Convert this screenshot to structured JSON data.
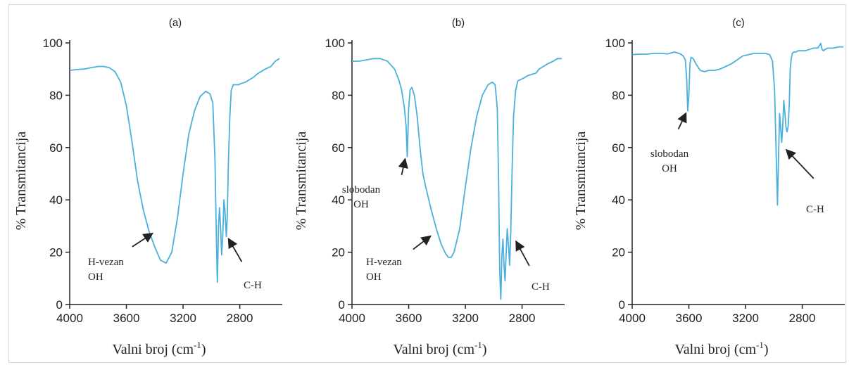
{
  "figure": {
    "line_color": "#4bb0dc",
    "panels": [
      {
        "label": "(a)",
        "xlabel": "Valni broj (cm",
        "xlabel_sup": "-1",
        "xlabel_end": ")",
        "ylabel": "% Transmitancija"
      },
      {
        "label": "(b)",
        "xlabel": "Valni broj (cm",
        "xlabel_sup": "-1",
        "xlabel_end": ")",
        "ylabel": "% Transmitancija"
      },
      {
        "label": "(c)",
        "xlabel": "Valni broj (cm",
        "xlabel_sup": "-1",
        "xlabel_end": ")",
        "ylabel": "% Transmitancija"
      }
    ]
  },
  "chart_data": [
    {
      "type": "line",
      "title": "(a)",
      "xlabel": "Valni broj (cm-1)",
      "ylabel": "% Transmitancija",
      "xlim": [
        4000,
        2500
      ],
      "ylim": [
        0,
        100
      ],
      "xticks": [
        4000,
        3600,
        3200,
        2800
      ],
      "yticks": [
        0,
        20,
        40,
        60,
        80,
        100
      ],
      "grid": false,
      "series": [
        {
          "x": [
            4000,
            3950,
            3900,
            3850,
            3800,
            3760,
            3720,
            3680,
            3640,
            3600,
            3560,
            3520,
            3480,
            3440,
            3400,
            3360,
            3320,
            3280,
            3240,
            3200,
            3160,
            3120,
            3080,
            3040,
            3010,
            2990,
            2975,
            2965,
            2958,
            2950,
            2943,
            2935,
            2928,
            2920,
            2912,
            2905,
            2895,
            2888,
            2880,
            2870,
            2860,
            2845,
            2830,
            2810,
            2790,
            2760,
            2730,
            2700,
            2680,
            2650,
            2620,
            2580,
            2550,
            2520
          ],
          "y": [
            89.5,
            89.8,
            90,
            90.5,
            91,
            91,
            90.5,
            89,
            85,
            76,
            62,
            47,
            36,
            28,
            22,
            17,
            15.8,
            20,
            33,
            50,
            65,
            74,
            79.5,
            81.5,
            80.5,
            77,
            55,
            25,
            8.5,
            30,
            37,
            29,
            19,
            26,
            40,
            36,
            26,
            34,
            55,
            72,
            82,
            84,
            84,
            84,
            84.5,
            85,
            86,
            87,
            88,
            89,
            90,
            91,
            93,
            94
          ]
        }
      ],
      "annotations": [
        {
          "text": "H-vezan OH",
          "x": 3400,
          "y": 28
        },
        {
          "text": "C-H",
          "x": 2895,
          "y": 26
        }
      ]
    },
    {
      "type": "line",
      "title": "(b)",
      "xlabel": "Valni broj (cm-1)",
      "ylabel": "% Transmitancija",
      "xlim": [
        4000,
        2500
      ],
      "ylim": [
        0,
        100
      ],
      "xticks": [
        4000,
        3600,
        3200,
        2800
      ],
      "yticks": [
        0,
        20,
        40,
        60,
        80,
        100
      ],
      "grid": false,
      "series": [
        {
          "x": [
            4000,
            3950,
            3900,
            3850,
            3800,
            3750,
            3700,
            3670,
            3650,
            3630,
            3618,
            3610,
            3600,
            3590,
            3578,
            3560,
            3540,
            3520,
            3500,
            3480,
            3440,
            3400,
            3370,
            3340,
            3320,
            3300,
            3280,
            3240,
            3200,
            3160,
            3120,
            3080,
            3040,
            3010,
            2990,
            2975,
            2965,
            2958,
            2950,
            2943,
            2935,
            2928,
            2920,
            2912,
            2905,
            2895,
            2888,
            2880,
            2870,
            2860,
            2845,
            2830,
            2810,
            2790,
            2760,
            2730,
            2700,
            2680,
            2650,
            2620,
            2580,
            2550,
            2520
          ],
          "y": [
            93,
            93,
            93.5,
            94,
            94,
            93,
            90,
            86,
            82,
            75,
            68,
            56.5,
            75,
            82,
            83,
            80,
            72,
            60,
            50,
            45,
            36,
            28,
            23,
            19.5,
            18,
            18,
            20,
            29,
            45,
            60,
            72,
            80,
            84,
            85,
            84,
            75,
            45,
            13,
            2,
            18,
            25,
            16,
            9,
            20,
            29,
            22,
            15,
            27,
            52,
            72,
            82,
            85.5,
            86,
            86.5,
            87.5,
            88,
            88.5,
            90,
            91,
            92,
            93,
            94,
            94
          ]
        }
      ],
      "annotations": [
        {
          "text": "slobodan OH",
          "x": 3610,
          "y": 56.5
        },
        {
          "text": "H-vezan OH",
          "x": 3430,
          "y": 27
        },
        {
          "text": "C-H",
          "x": 2858,
          "y": 25
        }
      ]
    },
    {
      "type": "line",
      "title": "(c)",
      "xlabel": "Valni broj (cm-1)",
      "ylabel": "% Transmitancija",
      "xlim": [
        4000,
        2500
      ],
      "ylim": [
        0,
        100
      ],
      "xticks": [
        4000,
        3600,
        3200,
        2800
      ],
      "yticks": [
        0,
        20,
        40,
        60,
        80,
        100
      ],
      "grid": false,
      "series": [
        {
          "x": [
            4000,
            3950,
            3900,
            3850,
            3800,
            3750,
            3700,
            3660,
            3640,
            3625,
            3615,
            3608,
            3600,
            3592,
            3585,
            3570,
            3550,
            3520,
            3490,
            3460,
            3420,
            3380,
            3340,
            3300,
            3260,
            3220,
            3180,
            3140,
            3100,
            3060,
            3030,
            3010,
            2995,
            2983,
            2975,
            2968,
            2960,
            2953,
            2945,
            2938,
            2930,
            2922,
            2915,
            2908,
            2900,
            2892,
            2885,
            2878,
            2870,
            2860,
            2845,
            2830,
            2810,
            2780,
            2750,
            2720,
            2690,
            2670,
            2660,
            2650,
            2640,
            2620,
            2580,
            2540,
            2510
          ],
          "y": [
            95.5,
            95.7,
            95.7,
            96,
            96,
            95.8,
            96.5,
            95.8,
            95,
            93.5,
            86,
            74,
            80,
            92,
            94.5,
            94,
            92,
            89.5,
            89,
            89.5,
            89.5,
            90,
            91,
            92,
            93.5,
            95,
            95.5,
            96,
            96,
            96,
            95.5,
            93,
            82,
            55,
            38,
            55,
            73,
            68,
            62,
            68,
            78,
            73,
            68,
            66,
            68,
            76,
            90,
            94,
            96,
            96.5,
            96.5,
            97,
            97,
            97,
            97.5,
            98,
            98,
            99.8,
            97.5,
            97,
            97.5,
            98,
            98,
            98.5,
            98.5
          ]
        }
      ],
      "annotations": [
        {
          "text": "slobodan OH",
          "x": 3605,
          "y": 74
        },
        {
          "text": "C-H",
          "x": 2928,
          "y": 60
        }
      ]
    }
  ]
}
